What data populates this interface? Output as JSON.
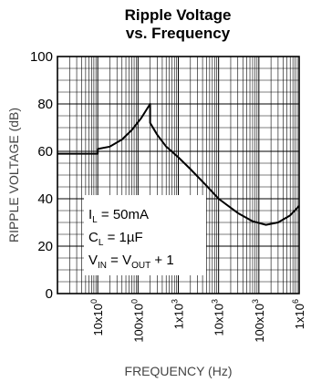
{
  "chart_data": {
    "type": "line",
    "title": [
      "Ripple Voltage",
      "vs. Frequency"
    ],
    "ylabel": "RIPPLE VOLTAGE (dB)",
    "xlabel": "FREQUENCY (Hz)",
    "x_scale": "log",
    "xlim": [
      1,
      1000000
    ],
    "ylim": [
      0,
      100
    ],
    "y_ticks": [
      0,
      20,
      40,
      60,
      80,
      100
    ],
    "y_tick_labels": [
      "0",
      "20",
      "40",
      "60",
      "80",
      "100"
    ],
    "x_ticks": [
      1,
      10,
      100,
      1000,
      10000,
      100000,
      1000000
    ],
    "x_tick_labels": [
      {
        "base": "10x10",
        "exp": "0"
      },
      {
        "base": "100x10",
        "exp": "0"
      },
      {
        "base": "1x10",
        "exp": "3"
      },
      {
        "base": "10x10",
        "exp": "3"
      },
      {
        "base": "100x10",
        "exp": "3"
      },
      {
        "base": "1x10",
        "exp": "6"
      }
    ],
    "grid": true,
    "series": [
      {
        "color": "#000000",
        "points": [
          [
            1,
            59
          ],
          [
            10,
            59
          ],
          [
            10,
            61
          ],
          [
            20,
            62
          ],
          [
            40,
            65
          ],
          [
            70,
            69
          ],
          [
            120,
            74
          ],
          [
            200,
            80
          ],
          [
            200,
            72
          ],
          [
            300,
            67
          ],
          [
            500,
            62
          ],
          [
            1000,
            57.5
          ],
          [
            2000,
            52.5
          ],
          [
            5000,
            45.5
          ],
          [
            10000,
            40
          ],
          [
            30000,
            34
          ],
          [
            70000,
            30.5
          ],
          [
            150000,
            29
          ],
          [
            300000,
            30
          ],
          [
            600000,
            33
          ],
          [
            1000000,
            37
          ]
        ]
      }
    ],
    "annotations": [
      {
        "parts": [
          {
            "t": "I"
          },
          {
            "t": "L",
            "sub": true
          },
          {
            "t": " = 50mA"
          }
        ]
      },
      {
        "parts": [
          {
            "t": "C"
          },
          {
            "t": "L",
            "sub": true
          },
          {
            "t": " = 1µF"
          }
        ]
      },
      {
        "parts": [
          {
            "t": "V"
          },
          {
            "t": "IN",
            "sub": true
          },
          {
            "t": " = V"
          },
          {
            "t": "OUT",
            "sub": true
          },
          {
            "t": " + 1"
          }
        ]
      }
    ]
  }
}
